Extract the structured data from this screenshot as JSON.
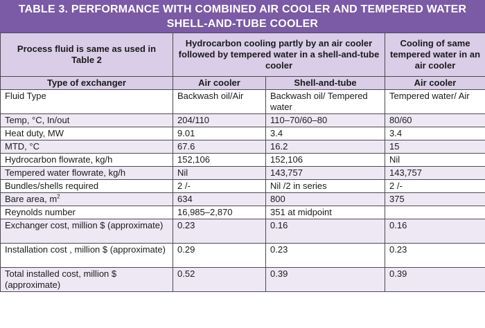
{
  "title": "TABLE 3. PERFORMANCE WITH COMBINED AIR COOLER AND TEMPERED WATER SHELL-AND-TUBE COOLER",
  "header": {
    "col0": "Process fluid is same as used in Table 2",
    "col1": "Hydrocarbon cooling partly by an air cooler followed by tempered water in a shell-and-tube cooler",
    "col3": "Cooling of same tempered water in an air cooler"
  },
  "subheader": {
    "col0": "Type of exchanger",
    "col1": "Air cooler",
    "col2": "Shell-and-tube",
    "col3": "Air cooler"
  },
  "rows": [
    {
      "label": "Fluid Type",
      "c1": "Backwash oil/Air",
      "c2": "Backwash oil/ Tempered water",
      "c3": "Tempered water/ Air"
    },
    {
      "label": "Temp, °C, In/out",
      "c1": "204/110",
      "c2": "110–70/60–80",
      "c3": "80/60"
    },
    {
      "label": "Heat duty, MW",
      "c1": "9.01",
      "c2": "3.4",
      "c3": "3.4"
    },
    {
      "label": "MTD, °C",
      "c1": "67.6",
      "c2": "16.2",
      "c3": "15"
    },
    {
      "label": "Hydrocarbon flowrate, kg/h",
      "c1": "152,106",
      "c2": "152,106",
      "c3": "Nil"
    },
    {
      "label": "Tempered water flowrate, kg/h",
      "c1": "Nil",
      "c2": "143,757",
      "c3": "143,757"
    },
    {
      "label": "Bundles/shells required",
      "c1": "2 /-",
      "c2": "Nil /2 in series",
      "c3": "2 /-"
    },
    {
      "label": "Bare area, m",
      "label_sup": "2",
      "c1": "634",
      "c2": "800",
      "c3": "375"
    },
    {
      "label": "Reynolds number",
      "c1": "16,985–2,870",
      "c2": "351 at midpoint",
      "c3": ""
    },
    {
      "label": "Exchanger cost, million $ (approximate)",
      "c1": "0.23",
      "c2": "0.16",
      "c3": "0.16"
    },
    {
      "label": "Installation cost , million $ (approximate)",
      "c1": "0.29",
      "c2": "0.23",
      "c3": "0.23"
    },
    {
      "label": "Total installed cost, million $ (approximate)",
      "c1": "0.52",
      "c2": "0.39",
      "c3": "0.39"
    }
  ]
}
